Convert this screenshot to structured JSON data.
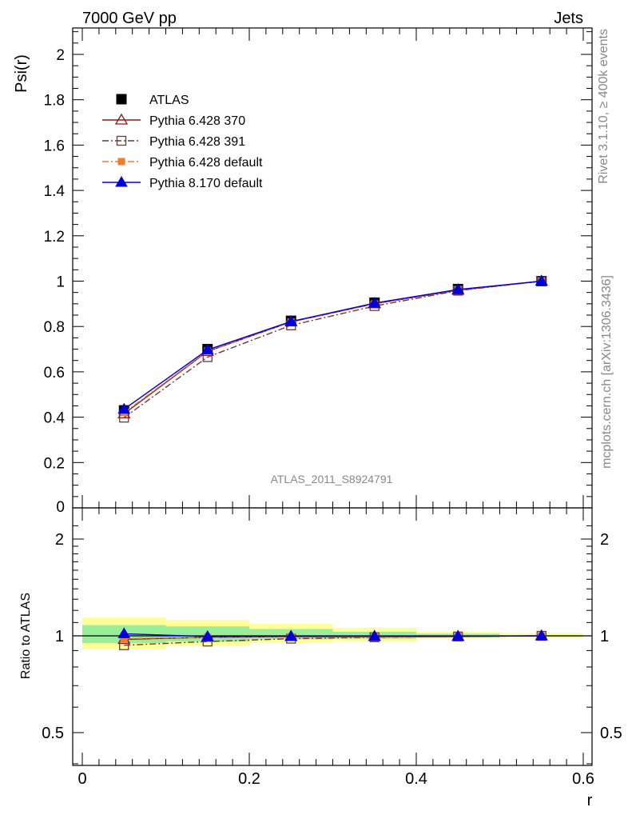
{
  "header": {
    "left": "7000 GeV pp",
    "right": "Jets"
  },
  "side_text": {
    "top": "Rivet 3.1.10, ≥ 400k events",
    "bottom": "mcplots.cern.ch [arXiv:1306.3436]"
  },
  "chart_data": [
    {
      "type": "line",
      "ylabel": "Psi(r)",
      "ylim": [
        0,
        2.12
      ],
      "xlim": [
        -0.015,
        0.605
      ],
      "x_ticks": [
        0,
        0.2,
        0.4,
        0.6
      ],
      "y_ticks": [
        0,
        0.2,
        0.4,
        0.6,
        0.8,
        1,
        1.2,
        1.4,
        1.6,
        1.8,
        2
      ],
      "y_tick_labels": [
        "0",
        "0.2",
        "0.4",
        "0.6",
        "0.8",
        "1",
        "1.2",
        "1.4",
        "1.6",
        "1.8",
        "2"
      ],
      "watermark": "ATLAS_2011_S8924791",
      "legend_position": "top-left",
      "x": [
        0.05,
        0.15,
        0.25,
        0.35,
        0.45,
        0.55
      ],
      "series": [
        {
          "name": "ATLAS",
          "values": [
            0.43,
            0.7,
            0.825,
            0.905,
            0.965,
            1.0
          ],
          "color": "#000000",
          "marker": "square-filled",
          "line": "none"
        },
        {
          "name": "Pythia 6.428 370",
          "values": [
            0.415,
            0.69,
            0.82,
            0.9,
            0.96,
            1.0
          ],
          "color": "#8b1a1a",
          "marker": "triangle-open",
          "line": "solid"
        },
        {
          "name": "Pythia 6.428 391",
          "values": [
            0.398,
            0.665,
            0.805,
            0.89,
            0.958,
            1.0
          ],
          "color": "#6b3a3a",
          "marker": "square-open",
          "line": "dashdot"
        },
        {
          "name": "Pythia 6.428 default",
          "values": [
            0.42,
            0.692,
            0.82,
            0.9,
            0.962,
            1.0
          ],
          "color": "#f07c30",
          "marker": "square-filled-small",
          "line": "dashdot"
        },
        {
          "name": "Pythia 8.170 default",
          "values": [
            0.435,
            0.697,
            0.822,
            0.903,
            0.963,
            1.0
          ],
          "color": "#0000dd",
          "marker": "triangle-filled",
          "line": "solid"
        }
      ]
    },
    {
      "type": "line",
      "ylabel": "Ratio to ATLAS",
      "xlabel": "r",
      "ylim": [
        0.38,
        2.4
      ],
      "scale": "log",
      "x_ticks": [
        0,
        0.2,
        0.4,
        0.6
      ],
      "x_tick_labels": [
        "0",
        "0.2",
        "0.4",
        "0.6"
      ],
      "y_ticks": [
        0.5,
        1,
        2
      ],
      "y_tick_labels": [
        "0.5",
        "1",
        "2"
      ],
      "x": [
        0.05,
        0.15,
        0.25,
        0.35,
        0.45,
        0.55
      ],
      "bands": {
        "x_edges": [
          0.0,
          0.1,
          0.2,
          0.3,
          0.4,
          0.5,
          0.6
        ],
        "yellow": [
          [
            0.91,
            1.14
          ],
          [
            0.93,
            1.12
          ],
          [
            0.95,
            1.09
          ],
          [
            0.96,
            1.06
          ],
          [
            0.98,
            1.03
          ],
          [
            0.985,
            1.02
          ]
        ],
        "green": [
          [
            0.95,
            1.08
          ],
          [
            0.96,
            1.07
          ],
          [
            0.975,
            1.05
          ],
          [
            0.98,
            1.03
          ],
          [
            0.99,
            1.015
          ],
          [
            0.995,
            1.005
          ]
        ],
        "colors": {
          "yellow": "#ffff99",
          "green": "#99ee99"
        }
      },
      "series": [
        {
          "name": "Pythia 6.428 370",
          "values": [
            0.975,
            0.99,
            0.995,
            0.995,
            0.995,
            1.0
          ],
          "color": "#8b1a1a",
          "marker": "triangle-open",
          "line": "solid"
        },
        {
          "name": "Pythia 6.428 391",
          "values": [
            0.935,
            0.96,
            0.98,
            0.99,
            0.995,
            1.0
          ],
          "color": "#6b3a3a",
          "marker": "square-open",
          "line": "dashdot"
        },
        {
          "name": "Pythia 6.428 default",
          "values": [
            0.98,
            0.99,
            0.993,
            0.995,
            0.997,
            1.0
          ],
          "color": "#f07c30",
          "marker": "square-filled-small",
          "line": "dashdot"
        },
        {
          "name": "Pythia 8.170 default",
          "values": [
            1.015,
            0.995,
            0.997,
            0.998,
            0.998,
            1.0
          ],
          "color": "#0000dd",
          "marker": "triangle-filled",
          "line": "solid"
        }
      ]
    }
  ]
}
